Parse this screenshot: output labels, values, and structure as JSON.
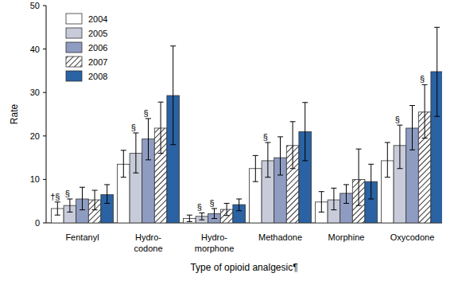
{
  "chart_data": {
    "type": "bar",
    "x_label": "Type of opioid analgesic¶",
    "y_label": "Rate",
    "categories": [
      "Fentanyl",
      "Hydro-\ncodone",
      "Hydro-\nmorphone",
      "Methadone",
      "Morphine",
      "Oxycodone"
    ],
    "series": [
      {
        "name": "2004",
        "color": "#ffffff",
        "values": [
          3.3,
          13.5,
          1.0,
          12.5,
          4.8,
          14.3
        ],
        "lower": [
          1.8,
          10.5,
          0.3,
          9.5,
          2.5,
          10.5
        ],
        "upper": [
          4.8,
          16.7,
          1.8,
          15.5,
          7.2,
          18.5
        ]
      },
      {
        "name": "2005",
        "color": "#c8cbd9",
        "values": [
          4.0,
          16.0,
          1.5,
          14.3,
          5.3,
          17.8
        ],
        "lower": [
          2.5,
          11.5,
          0.7,
          10.5,
          3.0,
          12.5
        ],
        "upper": [
          5.5,
          20.7,
          2.3,
          18.5,
          8.0,
          22.5
        ]
      },
      {
        "name": "2006",
        "color": "#8f9cc2",
        "values": [
          5.5,
          19.3,
          2.1,
          15.0,
          6.8,
          21.8
        ],
        "lower": [
          3.0,
          14.5,
          1.0,
          11.0,
          4.5,
          16.8
        ],
        "upper": [
          8.2,
          24.0,
          3.3,
          19.8,
          8.8,
          27.0
        ]
      },
      {
        "name": "2007",
        "color": "#ffffff",
        "marker": "hatch",
        "values": [
          5.3,
          21.8,
          3.1,
          17.8,
          10.0,
          25.5
        ],
        "lower": [
          3.0,
          16.0,
          1.7,
          12.5,
          4.0,
          19.5
        ],
        "upper": [
          7.5,
          27.8,
          4.5,
          23.3,
          17.0,
          31.8
        ]
      },
      {
        "name": "2008",
        "color": "#2a62a3",
        "values": [
          6.5,
          29.3,
          4.2,
          21.0,
          9.5,
          34.8
        ],
        "lower": [
          4.5,
          18.0,
          2.8,
          14.3,
          5.5,
          24.5
        ],
        "upper": [
          8.8,
          40.7,
          5.5,
          27.7,
          13.5,
          45.0
        ]
      }
    ],
    "annotations": [
      {
        "text": "†§",
        "category": "Fentanyl",
        "series": "2004"
      },
      {
        "text": "§",
        "category": "Fentanyl",
        "series": "2005"
      },
      {
        "text": "§",
        "category": "Hydro-\ncodone",
        "series": "2005"
      },
      {
        "text": "§",
        "category": "Hydro-\ncodone",
        "series": "2006"
      },
      {
        "text": "§",
        "category": "Hydro-\nmorphone",
        "series": "2005"
      },
      {
        "text": "§",
        "category": "Hydro-\nmorphone",
        "series": "2006"
      },
      {
        "text": "§",
        "category": "Methadone",
        "series": "2005"
      },
      {
        "text": "§",
        "category": "Oxycodone",
        "series": "2005"
      },
      {
        "text": "§",
        "category": "Oxycodone",
        "series": "2007"
      }
    ],
    "ylim": [
      0,
      50
    ],
    "yticks": [
      0,
      10,
      20,
      30,
      40,
      50
    ],
    "grid": false,
    "legend": "upper left"
  }
}
